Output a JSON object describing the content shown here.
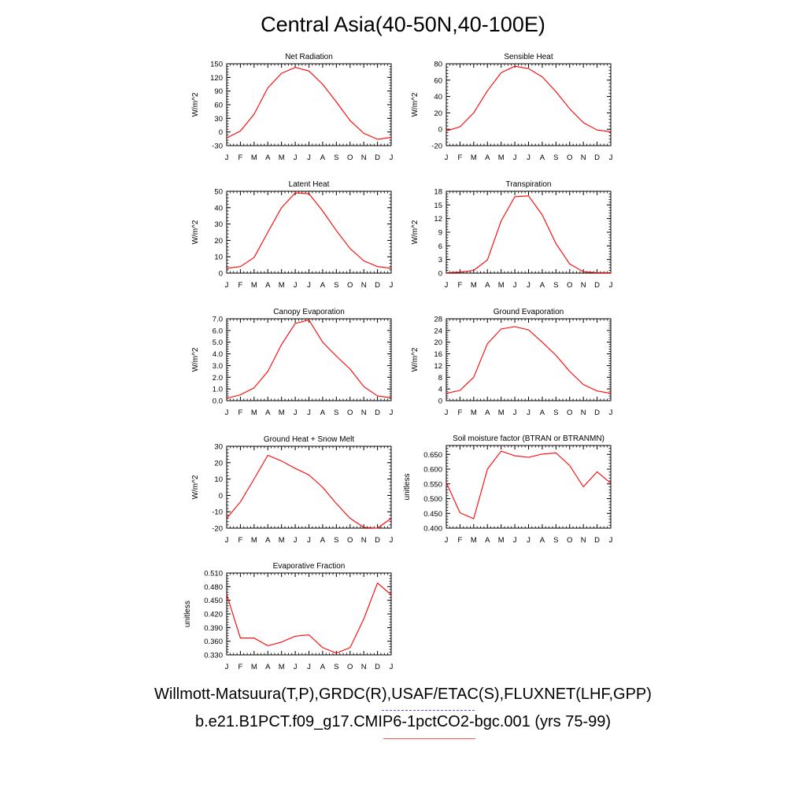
{
  "title": "Central Asia(40-50N,40-100E)",
  "legend": {
    "observed_label": "Willmott-Matsuura(T,P),GRDC(R),USAF/ETAC(S),FLUXNET(LHF,GPP)",
    "observed_color": "#5555ff",
    "observed_style": "dashed",
    "model_label": "b.e21.B1PCT.f09_g17.CMIP6-1pctCO2-bgc.001 (yrs 75-99)",
    "model_color": "#ff5555"
  },
  "line_color": "#ff0000",
  "chart_data": [
    {
      "type": "line",
      "title": "Net Radiation",
      "ylabel": "W/m^2",
      "x": [
        "J",
        "F",
        "M",
        "A",
        "M",
        "J",
        "J",
        "A",
        "S",
        "O",
        "N",
        "D",
        "J"
      ],
      "ylim": [
        -30,
        150
      ],
      "yticks": [
        "-30",
        "0",
        "30",
        "60",
        "90",
        "120",
        "150"
      ],
      "series": [
        {
          "values": [
            -13,
            2,
            39,
            97,
            129,
            142,
            134,
            105,
            66,
            25,
            -3,
            -16,
            -12
          ]
        }
      ]
    },
    {
      "type": "line",
      "title": "Sensible Heat",
      "ylabel": "W/m^2",
      "x": [
        "J",
        "F",
        "M",
        "A",
        "M",
        "J",
        "J",
        "A",
        "S",
        "O",
        "N",
        "D",
        "J"
      ],
      "ylim": [
        -20,
        80
      ],
      "yticks": [
        "-20",
        "0",
        "20",
        "40",
        "60",
        "80"
      ],
      "series": [
        {
          "values": [
            -2,
            3,
            20,
            47,
            69,
            77,
            74,
            64,
            46,
            25,
            8,
            -1,
            -3
          ]
        }
      ]
    },
    {
      "type": "line",
      "title": "Latent Heat",
      "ylabel": "W/m^2",
      "x": [
        "J",
        "F",
        "M",
        "A",
        "M",
        "J",
        "J",
        "A",
        "S",
        "O",
        "N",
        "D",
        "J"
      ],
      "ylim": [
        0,
        50
      ],
      "yticks": [
        "0",
        "10",
        "20",
        "30",
        "40",
        "50"
      ],
      "series": [
        {
          "values": [
            3,
            4,
            9.5,
            25,
            40,
            49,
            48.5,
            38,
            26,
            15,
            7.5,
            4,
            3
          ]
        }
      ]
    },
    {
      "type": "line",
      "title": "Transpiration",
      "ylabel": "W/m^2",
      "x": [
        "J",
        "F",
        "M",
        "A",
        "M",
        "J",
        "J",
        "A",
        "S",
        "O",
        "N",
        "D",
        "J"
      ],
      "ylim": [
        0,
        18
      ],
      "yticks": [
        "0",
        "3",
        "6",
        "9",
        "12",
        "15",
        "18"
      ],
      "series": [
        {
          "values": [
            0.1,
            0.2,
            0.6,
            2.9,
            11.5,
            16.8,
            17.0,
            12.8,
            6.5,
            2.0,
            0.3,
            0.1,
            0.1
          ]
        }
      ]
    },
    {
      "type": "line",
      "title": "Canopy Evaporation",
      "ylabel": "W/m^2",
      "x": [
        "J",
        "F",
        "M",
        "A",
        "M",
        "J",
        "J",
        "A",
        "S",
        "O",
        "N",
        "D",
        "J"
      ],
      "ylim": [
        0,
        7
      ],
      "yticks": [
        "0.0",
        "1.0",
        "2.0",
        "3.0",
        "4.0",
        "5.0",
        "6.0",
        "7.0"
      ],
      "series": [
        {
          "values": [
            0.2,
            0.5,
            1.1,
            2.5,
            4.8,
            6.6,
            6.9,
            5.0,
            3.8,
            2.7,
            1.2,
            0.4,
            0.25
          ]
        }
      ]
    },
    {
      "type": "line",
      "title": "Ground Evaporation",
      "ylabel": "W/m^2",
      "x": [
        "J",
        "F",
        "M",
        "A",
        "M",
        "J",
        "J",
        "A",
        "S",
        "O",
        "N",
        "D",
        "J"
      ],
      "ylim": [
        0,
        28
      ],
      "yticks": [
        "0",
        "4",
        "8",
        "12",
        "16",
        "20",
        "24",
        "28"
      ],
      "series": [
        {
          "values": [
            2.5,
            3.5,
            8,
            19.5,
            24.5,
            25.3,
            24.2,
            20,
            15.5,
            10,
            5.5,
            3.3,
            2.5
          ]
        }
      ]
    },
    {
      "type": "line",
      "title": "Ground Heat + Snow Melt",
      "ylabel": "W/m^2",
      "x": [
        "J",
        "F",
        "M",
        "A",
        "M",
        "J",
        "J",
        "A",
        "S",
        "O",
        "N",
        "D",
        "J"
      ],
      "ylim": [
        -20,
        30
      ],
      "yticks": [
        "-20",
        "-10",
        "0",
        "10",
        "20",
        "30"
      ],
      "series": [
        {
          "values": [
            -14,
            -4,
            10,
            24.5,
            21,
            16.5,
            12.5,
            5,
            -5,
            -14,
            -19.5,
            -20,
            -14
          ]
        }
      ]
    },
    {
      "type": "line",
      "title": "Soil moisture factor (BTRAN or BTRANMN)",
      "ylabel": "unitless",
      "x": [
        "J",
        "F",
        "M",
        "A",
        "M",
        "J",
        "J",
        "A",
        "S",
        "O",
        "N",
        "D",
        "J"
      ],
      "ylim": [
        0.4,
        0.68
      ],
      "yticks": [
        "0.400",
        "0.450",
        "0.500",
        "0.550",
        "0.600",
        "0.650"
      ],
      "series": [
        {
          "values": [
            0.555,
            0.452,
            0.432,
            0.6,
            0.661,
            0.645,
            0.64,
            0.651,
            0.655,
            0.612,
            0.54,
            0.591,
            0.552
          ]
        }
      ]
    },
    {
      "type": "line",
      "title": "Evaporative Fraction",
      "ylabel": "unitless",
      "x": [
        "J",
        "F",
        "M",
        "A",
        "M",
        "J",
        "J",
        "A",
        "S",
        "O",
        "N",
        "D",
        "J"
      ],
      "ylim": [
        0.33,
        0.51
      ],
      "yticks": [
        "0.330",
        "0.360",
        "0.390",
        "0.420",
        "0.450",
        "0.480",
        "0.510"
      ],
      "series": [
        {
          "values": [
            0.463,
            0.367,
            0.367,
            0.35,
            0.358,
            0.371,
            0.374,
            0.346,
            0.334,
            0.346,
            0.409,
            0.488,
            0.462
          ]
        }
      ]
    }
  ]
}
